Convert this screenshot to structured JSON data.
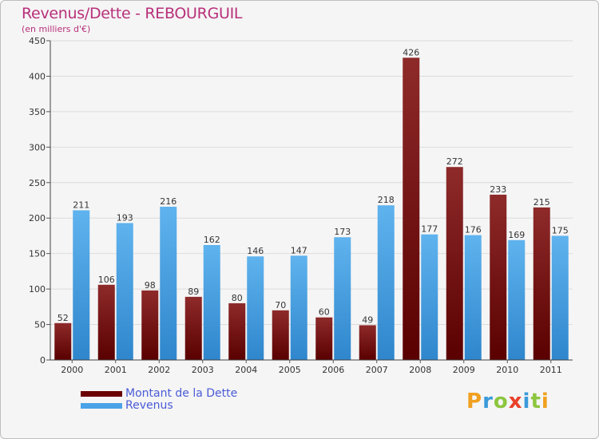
{
  "chart_data": {
    "type": "bar",
    "title": "Revenus/Dette - REBOURGUIL",
    "subtitle": "(en milliers d'€)",
    "xlabel": "",
    "ylabel": "",
    "ylim": [
      0,
      450
    ],
    "yticks": [
      0,
      50,
      100,
      150,
      200,
      250,
      300,
      350,
      400,
      450
    ],
    "grid": true,
    "categories": [
      "2000",
      "2001",
      "2002",
      "2003",
      "2004",
      "2005",
      "2006",
      "2007",
      "2008",
      "2009",
      "2010",
      "2011"
    ],
    "series": [
      {
        "name": "Montant de la Dette",
        "color": "#8a2222",
        "values": [
          52,
          106,
          98,
          89,
          80,
          70,
          60,
          49,
          426,
          272,
          233,
          215
        ]
      },
      {
        "name": "Revenus",
        "color": "#3e9fe3",
        "values": [
          211,
          193,
          216,
          162,
          146,
          147,
          173,
          218,
          177,
          176,
          169,
          175
        ]
      }
    ]
  },
  "legend": {
    "placement": "bottom-left",
    "items": [
      {
        "label": "Montant de la Dette",
        "color": "#6b0000"
      },
      {
        "label": "Revenus",
        "color": "#4aa3e8"
      }
    ]
  },
  "logo": {
    "letters": [
      {
        "ch": "P",
        "color": "#f0a020"
      },
      {
        "ch": "r",
        "color": "#3a9ad9"
      },
      {
        "ch": "o",
        "color": "#8cc63f"
      },
      {
        "ch": "x",
        "color": "#e8402a"
      },
      {
        "ch": "i",
        "color": "#3a9ad9"
      },
      {
        "ch": "t",
        "color": "#8cc63f"
      },
      {
        "ch": "i",
        "color": "#f0a020"
      }
    ]
  }
}
